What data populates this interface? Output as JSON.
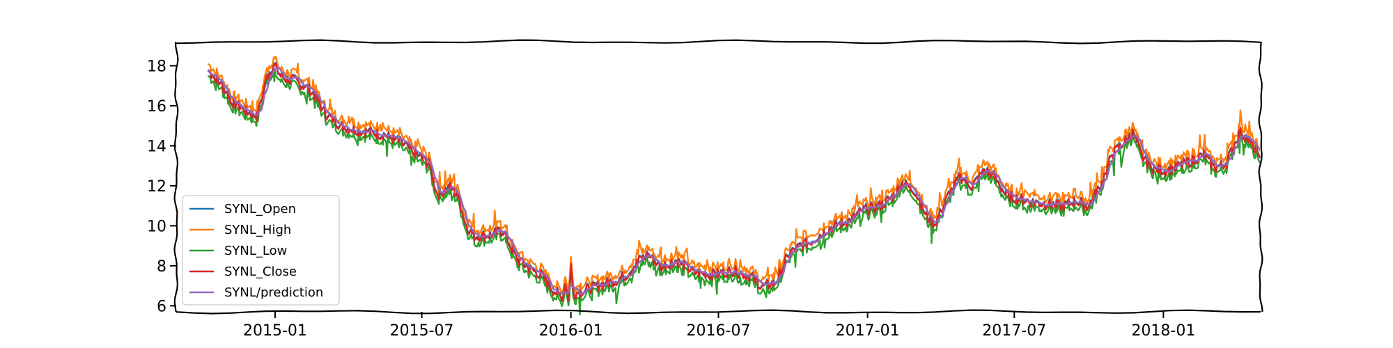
{
  "chart_data": {
    "type": "line",
    "title": "",
    "xlabel": "",
    "ylabel": "",
    "x_axis": {
      "type": "date",
      "start": "2014-09-01",
      "end": "2018-05-01",
      "ticks": [
        {
          "date": "2015-01-01",
          "label": "2015-01"
        },
        {
          "date": "2015-07-01",
          "label": "2015-07"
        },
        {
          "date": "2016-01-01",
          "label": "2016-01"
        },
        {
          "date": "2016-07-01",
          "label": "2016-07"
        },
        {
          "date": "2017-01-01",
          "label": "2017-01"
        },
        {
          "date": "2017-07-01",
          "label": "2017-07"
        },
        {
          "date": "2018-01-01",
          "label": "2018-01"
        }
      ]
    },
    "y_axis": {
      "range": [
        5.7,
        19.2
      ],
      "ticks": [
        6,
        8,
        10,
        12,
        14,
        16,
        18
      ]
    },
    "grid": false,
    "legend": {
      "position": "lower-left",
      "entries": [
        "SYNL_Open",
        "SYNL_High",
        "SYNL_Low",
        "SYNL_Close",
        "SYNL/prediction"
      ]
    },
    "series": [
      {
        "name": "SYNL_Open",
        "color": "#1f77b4",
        "offset": 0.0
      },
      {
        "name": "SYNL_High",
        "color": "#ff7f0e",
        "offset": 0.3
      },
      {
        "name": "SYNL_Low",
        "color": "#2ca02c",
        "offset": -0.3
      },
      {
        "name": "SYNL_Close",
        "color": "#d62728",
        "offset": -0.05
      },
      {
        "name": "SYNL/prediction",
        "color": "#9467bd",
        "offset": 0.0
      }
    ],
    "price_points": [
      [
        "2014-10-10",
        17.8
      ],
      [
        "2014-10-25",
        17.2
      ],
      [
        "2014-11-10",
        16.2
      ],
      [
        "2014-11-25",
        15.8
      ],
      [
        "2014-12-10",
        15.5
      ],
      [
        "2014-12-22",
        17.5
      ],
      [
        "2014-12-30",
        18.1
      ],
      [
        "2015-01-10",
        17.4
      ],
      [
        "2015-01-25",
        17.3
      ],
      [
        "2015-02-15",
        16.8
      ],
      [
        "2015-03-05",
        15.6
      ],
      [
        "2015-03-25",
        15.0
      ],
      [
        "2015-04-15",
        14.8
      ],
      [
        "2015-05-15",
        14.6
      ],
      [
        "2015-06-05",
        14.2
      ],
      [
        "2015-06-25",
        13.6
      ],
      [
        "2015-07-10",
        13.1
      ],
      [
        "2015-07-20",
        11.6
      ],
      [
        "2015-08-05",
        12.0
      ],
      [
        "2015-08-15",
        11.5
      ],
      [
        "2015-08-25",
        10.0
      ],
      [
        "2015-09-05",
        9.5
      ],
      [
        "2015-09-25",
        9.6
      ],
      [
        "2015-10-10",
        9.8
      ],
      [
        "2015-10-25",
        8.4
      ],
      [
        "2015-11-10",
        7.9
      ],
      [
        "2015-11-25",
        7.6
      ],
      [
        "2015-12-10",
        6.8
      ],
      [
        "2015-12-22",
        6.5
      ],
      [
        "2015-12-26",
        7.5
      ],
      [
        "2015-12-29",
        6.3
      ],
      [
        "2016-01-01",
        8.1
      ],
      [
        "2016-01-04",
        6.6
      ],
      [
        "2016-01-15",
        6.8
      ],
      [
        "2016-02-01",
        7.0
      ],
      [
        "2016-02-25",
        7.3
      ],
      [
        "2016-03-10",
        7.6
      ],
      [
        "2016-03-25",
        8.3
      ],
      [
        "2016-04-05",
        8.6
      ],
      [
        "2016-04-20",
        8.0
      ],
      [
        "2016-05-10",
        8.3
      ],
      [
        "2016-06-01",
        7.7
      ],
      [
        "2016-06-25",
        7.6
      ],
      [
        "2016-07-20",
        7.8
      ],
      [
        "2016-08-10",
        7.5
      ],
      [
        "2016-08-25",
        7.0
      ],
      [
        "2016-09-10",
        7.2
      ],
      [
        "2016-09-25",
        8.6
      ],
      [
        "2016-10-10",
        9.0
      ],
      [
        "2016-10-25",
        9.3
      ],
      [
        "2016-11-10",
        9.8
      ],
      [
        "2016-11-25",
        10.1
      ],
      [
        "2016-12-10",
        10.3
      ],
      [
        "2016-12-25",
        10.8
      ],
      [
        "2017-01-15",
        11.0
      ],
      [
        "2017-02-01",
        11.5
      ],
      [
        "2017-02-12",
        12.2
      ],
      [
        "2017-02-28",
        11.8
      ],
      [
        "2017-03-15",
        10.5
      ],
      [
        "2017-03-25",
        10.1
      ],
      [
        "2017-04-10",
        11.5
      ],
      [
        "2017-04-25",
        12.5
      ],
      [
        "2017-05-10",
        12.0
      ],
      [
        "2017-05-25",
        12.8
      ],
      [
        "2017-06-05",
        12.6
      ],
      [
        "2017-06-20",
        11.6
      ],
      [
        "2017-07-05",
        11.4
      ],
      [
        "2017-07-25",
        11.2
      ],
      [
        "2017-08-15",
        11.1
      ],
      [
        "2017-08-30",
        11.0
      ],
      [
        "2017-09-15",
        11.3
      ],
      [
        "2017-09-30",
        11.0
      ],
      [
        "2017-10-15",
        12.0
      ],
      [
        "2017-10-30",
        13.6
      ],
      [
        "2017-11-15",
        14.3
      ],
      [
        "2017-11-25",
        14.7
      ],
      [
        "2017-12-05",
        13.5
      ],
      [
        "2017-12-20",
        12.9
      ],
      [
        "2018-01-05",
        12.8
      ],
      [
        "2018-01-20",
        13.0
      ],
      [
        "2018-02-05",
        13.3
      ],
      [
        "2018-02-20",
        13.6
      ],
      [
        "2018-03-05",
        12.9
      ],
      [
        "2018-03-20",
        13.2
      ],
      [
        "2018-04-05",
        14.7
      ],
      [
        "2018-04-15",
        14.4
      ],
      [
        "2018-04-25",
        13.8
      ],
      [
        "2018-04-30",
        13.7
      ]
    ]
  }
}
